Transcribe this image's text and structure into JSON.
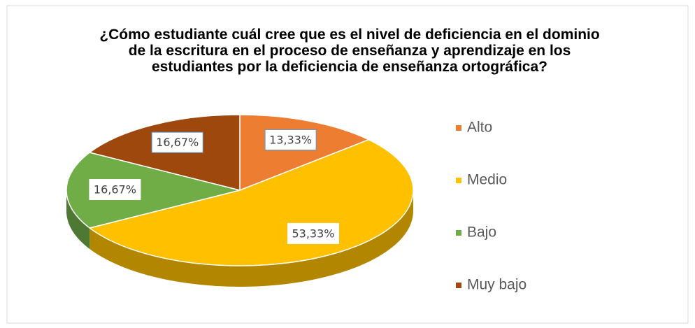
{
  "chart_data": {
    "type": "pie",
    "title": "¿Cómo estudiante cuál cree que es el nivel de deficiencia en el dominio de la escritura en el proceso de enseñanza y aprendizaje en los estudiantes por la deficiencia de enseñanza ortográfica?",
    "categories": [
      "Alto",
      "Medio",
      "Bajo",
      "Muy bajo"
    ],
    "values": [
      13.33,
      53.33,
      16.67,
      16.67
    ],
    "value_labels": [
      "13,33%",
      "53,33%",
      "16,67%",
      "16,67%"
    ],
    "colors": [
      "#ED7D31",
      "#FFC000",
      "#70AD47",
      "#9E480E"
    ],
    "legend": "right"
  }
}
